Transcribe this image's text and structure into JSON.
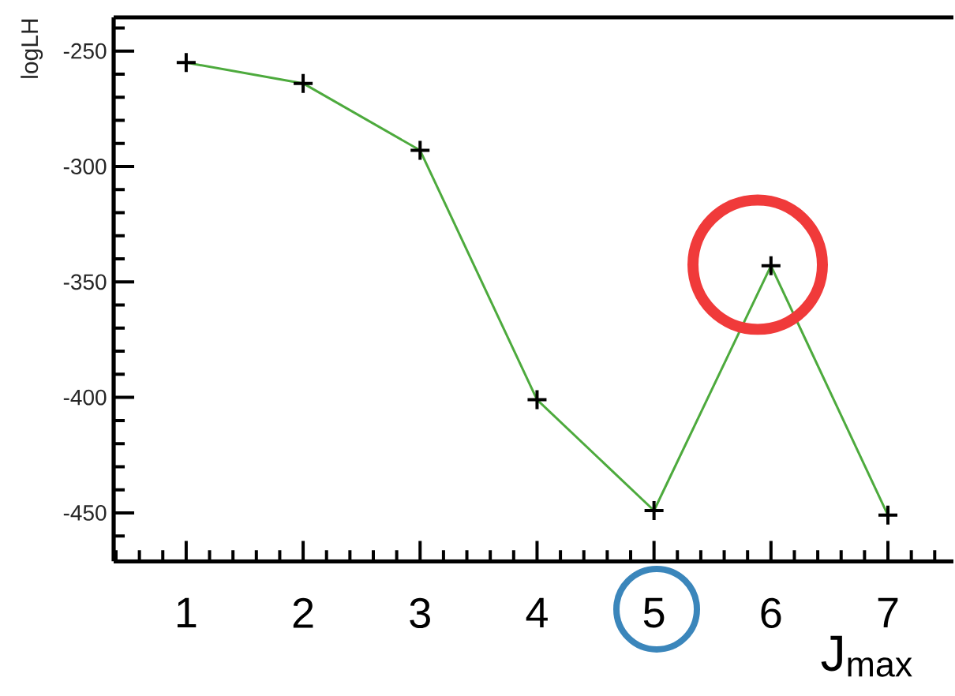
{
  "chart_data": {
    "type": "line",
    "xlabel": "J$_{max}$",
    "ylabel": "logLH",
    "x": [
      1,
      2,
      3,
      4,
      5,
      6,
      7
    ],
    "series": [
      {
        "color": "#4daa3d",
        "values": [
          -255,
          -264,
          -293,
          -401,
          -449,
          -343,
          -451
        ]
      }
    ],
    "xlim": [
      0.38,
      7.56
    ],
    "ylim": [
      -471,
      -235.4
    ],
    "xticks": [
      {
        "value": 0.4,
        "label": null
      },
      {
        "value": 0.6,
        "label": null
      },
      {
        "value": 0.8,
        "label": null
      },
      1,
      {
        "value": 1.2,
        "label": null
      },
      {
        "value": 1.4,
        "label": null
      },
      {
        "value": 1.6,
        "label": null
      },
      {
        "value": 1.8,
        "label": null
      },
      2,
      {
        "value": 2.2,
        "label": null
      },
      {
        "value": 2.4,
        "label": null
      },
      {
        "value": 2.6,
        "label": null
      },
      {
        "value": 2.8,
        "label": null
      },
      3,
      {
        "value": 3.2,
        "label": null
      },
      {
        "value": 3.4,
        "label": null
      },
      {
        "value": 3.6,
        "label": null
      },
      {
        "value": 3.8,
        "label": null
      },
      4,
      {
        "value": 4.2,
        "label": null
      },
      {
        "value": 4.4,
        "label": null
      },
      {
        "value": 4.6,
        "label": null
      },
      {
        "value": 4.8,
        "label": null
      },
      5,
      {
        "value": 5.2,
        "label": null
      },
      {
        "value": 5.4,
        "label": null
      },
      {
        "value": 5.6,
        "label": null
      },
      {
        "value": 5.8,
        "label": null
      },
      6,
      {
        "value": 6.2,
        "label": null
      },
      {
        "value": 6.4,
        "label": null
      },
      {
        "value": 6.6,
        "label": null
      },
      {
        "value": 6.8,
        "label": null
      },
      7,
      {
        "value": 7.2,
        "label": null
      },
      {
        "value": 7.4,
        "label": null
      }
    ],
    "yticks": [
      {
        "value": -460,
        "label": null
      },
      -450,
      {
        "value": -440,
        "label": null
      },
      {
        "value": -430,
        "label": null
      },
      {
        "value": -420,
        "label": null
      },
      {
        "value": -410,
        "label": null
      },
      -400,
      {
        "value": -390,
        "label": null
      },
      {
        "value": -380,
        "label": null
      },
      {
        "value": -370,
        "label": null
      },
      {
        "value": -360,
        "label": null
      },
      -350,
      {
        "value": -340,
        "label": null
      },
      {
        "value": -330,
        "label": null
      },
      {
        "value": -320,
        "label": null
      },
      {
        "value": -310,
        "label": null
      },
      -300,
      {
        "value": -290,
        "label": null
      },
      {
        "value": -280,
        "label": null
      },
      {
        "value": -270,
        "label": null
      },
      {
        "value": -260,
        "label": null
      },
      -250,
      {
        "value": -240,
        "label": null
      }
    ],
    "marker": "cross",
    "line_style": "solid"
  }
}
